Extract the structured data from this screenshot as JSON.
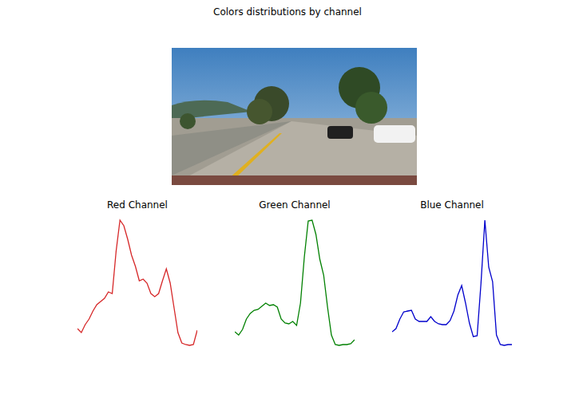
{
  "title": "Colors distributions by channel",
  "chart_data": [
    {
      "type": "line",
      "title": "Red Channel",
      "color": "#d62728",
      "tick_labels": false,
      "ylim": [
        0,
        170
      ],
      "values": [
        28,
        23,
        33,
        40,
        50,
        58,
        62,
        66,
        74,
        72,
        125,
        164,
        157,
        140,
        120,
        106,
        88,
        90,
        85,
        72,
        68,
        72,
        88,
        103,
        85,
        54,
        23,
        10,
        8,
        7,
        8,
        26
      ]
    },
    {
      "type": "line",
      "title": "Green Channel",
      "color": "#008000",
      "tick_labels": false,
      "ylim": [
        0,
        170
      ],
      "values": [
        24,
        20,
        27,
        40,
        47,
        51,
        52,
        56,
        60,
        57,
        58,
        55,
        40,
        35,
        34,
        37,
        32,
        60,
        118,
        163,
        164,
        146,
        115,
        95,
        55,
        20,
        8,
        7,
        8,
        8,
        9,
        14
      ]
    },
    {
      "type": "line",
      "title": "Blue Channel",
      "color": "#0000cc",
      "tick_labels": false,
      "ylim": [
        0,
        170
      ],
      "values": [
        24,
        28,
        40,
        49,
        50,
        51,
        40,
        37,
        37,
        37,
        43,
        37,
        34,
        33,
        33,
        38,
        50,
        70,
        82,
        60,
        35,
        18,
        19,
        85,
        164,
        105,
        87,
        20,
        8,
        7,
        8,
        8
      ]
    }
  ]
}
